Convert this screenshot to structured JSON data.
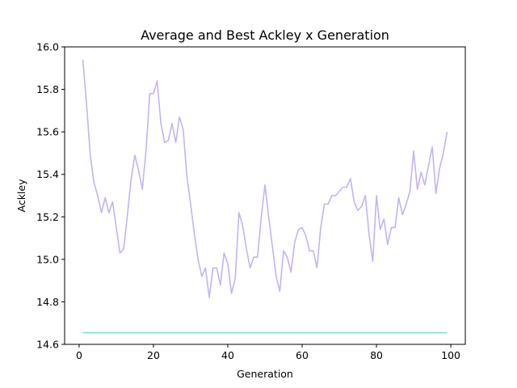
{
  "chart_data": {
    "type": "line",
    "title": "Average and Best Ackley x Generation",
    "xlabel": "Generation",
    "ylabel": "Ackley",
    "xlim": [
      -3.9,
      103.9
    ],
    "ylim": [
      14.6,
      16.0
    ],
    "xticks": [
      0,
      20,
      40,
      60,
      80,
      100
    ],
    "yticks": [
      14.6,
      14.8,
      15.0,
      15.2,
      15.4,
      15.6,
      15.8,
      16.0
    ],
    "ytick_labels": [
      "14.6",
      "14.8",
      "15.0",
      "15.2",
      "15.4",
      "15.6",
      "15.8",
      "16.0"
    ],
    "grid": false,
    "legend": "none",
    "x_start": 1,
    "series": [
      {
        "color": "#c5b3f5",
        "values": [
          15.94,
          15.73,
          15.49,
          15.36,
          15.3,
          15.22,
          15.29,
          15.22,
          15.27,
          15.15,
          15.03,
          15.05,
          15.21,
          15.38,
          15.49,
          15.42,
          15.33,
          15.51,
          15.78,
          15.78,
          15.84,
          15.64,
          15.55,
          15.56,
          15.64,
          15.55,
          15.67,
          15.61,
          15.39,
          15.26,
          15.12,
          15.0,
          14.92,
          14.96,
          14.82,
          14.96,
          14.96,
          14.88,
          15.03,
          14.98,
          14.84,
          14.91,
          15.22,
          15.16,
          15.05,
          14.96,
          15.01,
          15.01,
          15.2,
          15.35,
          15.2,
          15.06,
          14.92,
          14.85,
          15.04,
          15.01,
          14.94,
          15.08,
          15.14,
          15.15,
          15.11,
          15.04,
          15.04,
          14.96,
          15.15,
          15.26,
          15.26,
          15.3,
          15.3,
          15.32,
          15.34,
          15.34,
          15.38,
          15.27,
          15.23,
          15.25,
          15.3,
          15.12,
          14.99,
          15.3,
          15.14,
          15.19,
          15.07,
          15.15,
          15.15,
          15.29,
          15.21,
          15.26,
          15.32,
          15.51,
          15.33,
          15.41,
          15.35,
          15.44,
          15.53,
          15.31,
          15.43,
          15.5,
          15.6
        ]
      },
      {
        "color": "#7fe0cc",
        "values": [
          14.655,
          14.655,
          14.655,
          14.655,
          14.655,
          14.655,
          14.655,
          14.655,
          14.655,
          14.655,
          14.655,
          14.655,
          14.655,
          14.655,
          14.655,
          14.655,
          14.655,
          14.655,
          14.655,
          14.655,
          14.655,
          14.655,
          14.655,
          14.655,
          14.655,
          14.655,
          14.655,
          14.655,
          14.655,
          14.655,
          14.655,
          14.655,
          14.655,
          14.655,
          14.655,
          14.655,
          14.655,
          14.655,
          14.655,
          14.655,
          14.655,
          14.655,
          14.655,
          14.655,
          14.655,
          14.655,
          14.655,
          14.655,
          14.655,
          14.655,
          14.655,
          14.655,
          14.655,
          14.655,
          14.655,
          14.655,
          14.655,
          14.655,
          14.655,
          14.655,
          14.655,
          14.655,
          14.655,
          14.655,
          14.655,
          14.655,
          14.655,
          14.655,
          14.655,
          14.655,
          14.655,
          14.655,
          14.655,
          14.655,
          14.655,
          14.655,
          14.655,
          14.655,
          14.655,
          14.655,
          14.655,
          14.655,
          14.655,
          14.655,
          14.655,
          14.655,
          14.655,
          14.655,
          14.655,
          14.655,
          14.655,
          14.655,
          14.655,
          14.655,
          14.655,
          14.655,
          14.655,
          14.655,
          14.655
        ]
      }
    ]
  }
}
